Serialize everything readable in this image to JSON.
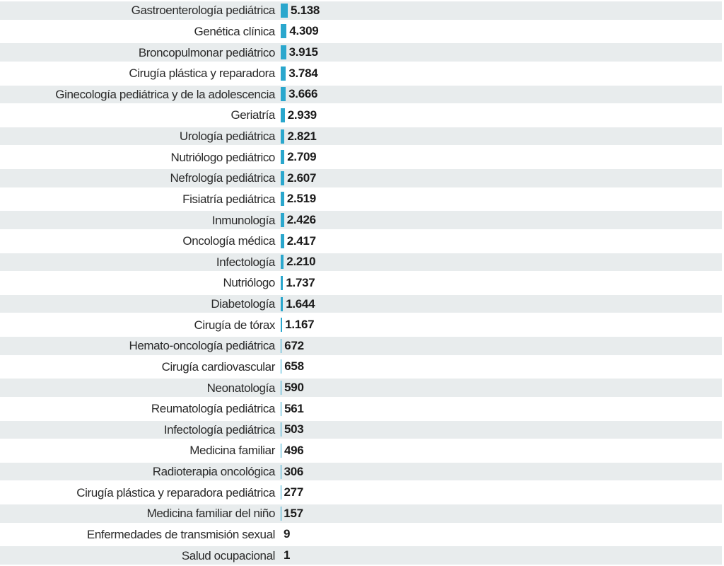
{
  "chart_data": {
    "type": "bar",
    "orientation": "horizontal",
    "title": "",
    "xlabel": "",
    "ylabel": "",
    "grid": false,
    "legend": "none",
    "bar_color": "#2aa7cd",
    "stripe_color": "#e8eced",
    "categories": [
      "Gastroenterología pediátrica",
      "Genética clínica",
      "Broncopulmonar pediátrico",
      "Cirugía plástica y reparadora",
      "Ginecología pediátrica y de la adolescencia",
      "Geriatría",
      "Urología pediátrica",
      "Nutriólogo pediátrico",
      "Nefrología pediátrica",
      "Fisiatría pediátrica",
      "Inmunología",
      "Oncología médica",
      "Infectología",
      "Nutriólogo",
      "Diabetología",
      "Cirugía de tórax",
      "Hemato-oncología pediátrica",
      "Cirugía cardiovascular",
      "Neonatología",
      "Reumatología pediátrica",
      "Infectología pediátrica",
      "Medicina familiar",
      "Radioterapia oncológica",
      "Cirugía plástica y reparadora pediátrica",
      "Medicina familiar del niño",
      "Enfermedades de transmisión sexual",
      "Salud ocupacional"
    ],
    "values": [
      5138,
      4309,
      3915,
      3784,
      3666,
      2939,
      2821,
      2709,
      2607,
      2519,
      2426,
      2417,
      2210,
      1737,
      1644,
      1167,
      672,
      658,
      590,
      561,
      503,
      496,
      306,
      277,
      157,
      9,
      1
    ],
    "value_labels": [
      "5.138",
      "4.309",
      "3.915",
      "3.784",
      "3.666",
      "2.939",
      "2.821",
      "2.709",
      "2.607",
      "2.519",
      "2.426",
      "2.417",
      "2.210",
      "1.737",
      "1.644",
      "1.167",
      "672",
      "658",
      "590",
      "561",
      "503",
      "496",
      "306",
      "277",
      "157",
      "9",
      "1"
    ]
  }
}
